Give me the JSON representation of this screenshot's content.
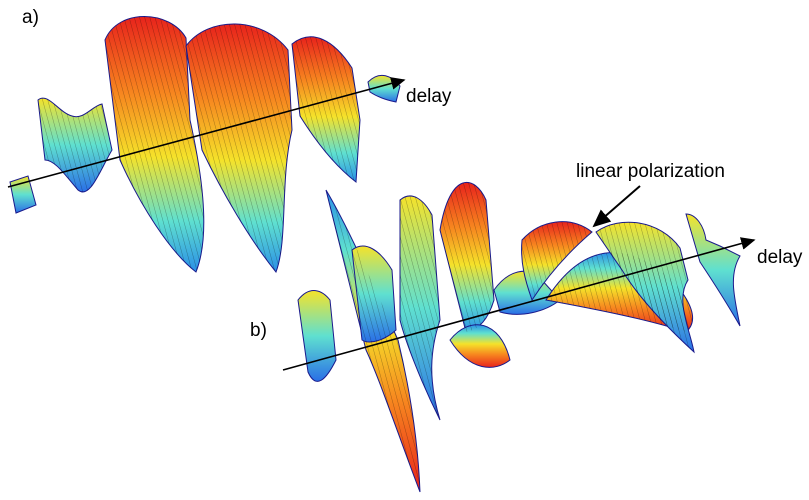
{
  "panels": [
    {
      "label": "a)",
      "axis_label": "delay"
    },
    {
      "label": "b)",
      "axis_label": "delay",
      "annotation": "linear polarization"
    }
  ]
}
